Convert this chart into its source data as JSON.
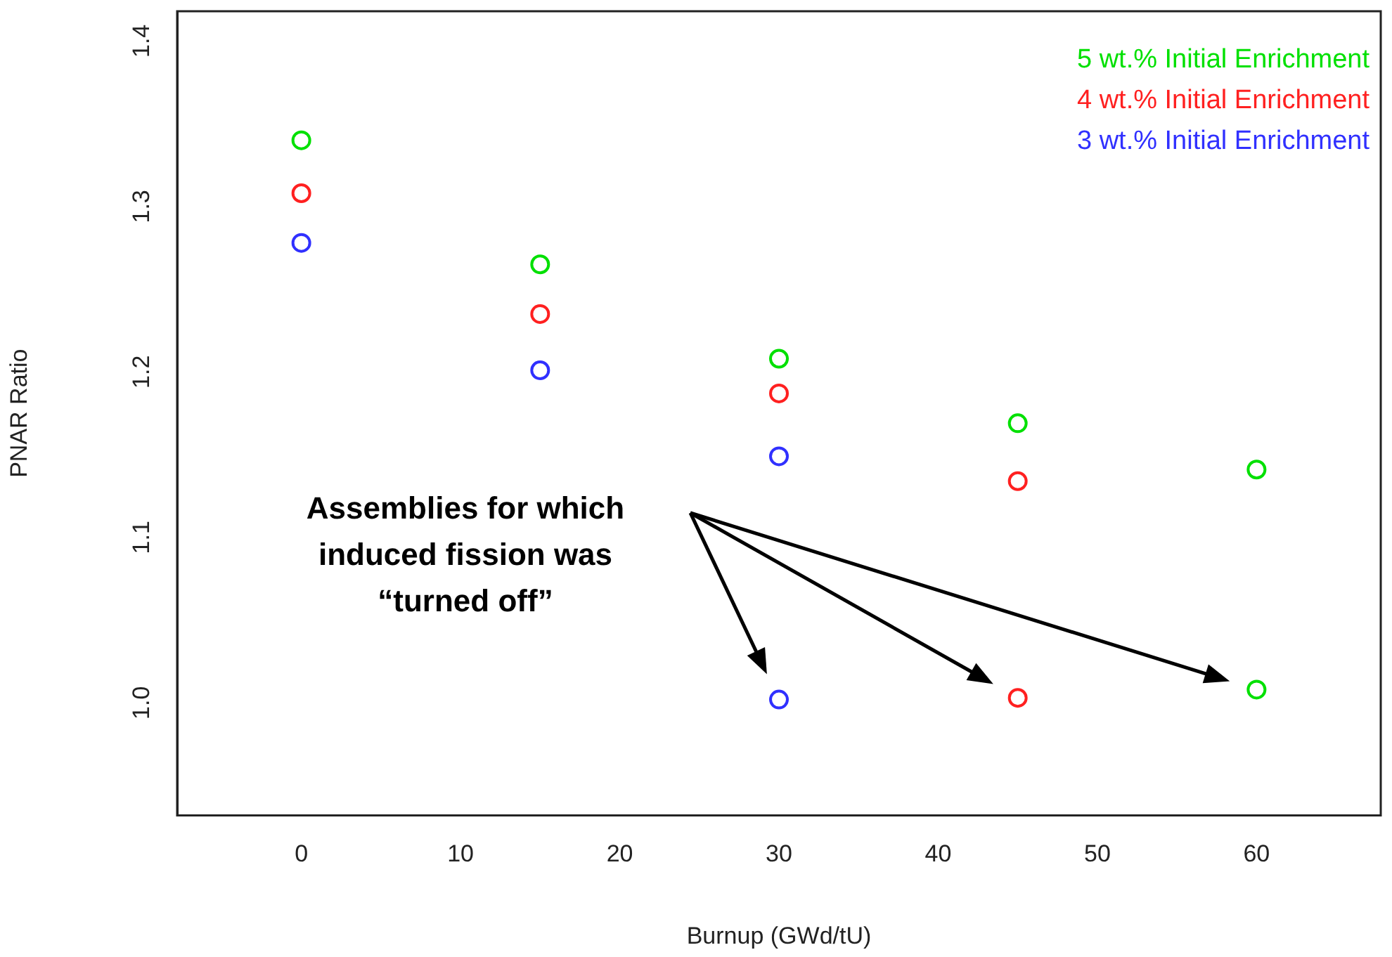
{
  "chart_data": {
    "type": "scatter",
    "xlabel": "Burnup (GWd/tU)",
    "ylabel": "PNAR Ratio",
    "xlim": [
      -7.8,
      67.8
    ],
    "xticks": [
      0,
      10,
      20,
      30,
      40,
      50,
      60
    ],
    "ylim": [
      0.932,
      1.418
    ],
    "yticks": [
      {
        "value": 1.0,
        "label": "1.0"
      },
      1.1,
      1.2,
      1.3,
      1.4
    ],
    "grid": false,
    "marker": "circle",
    "series": [
      {
        "name": "5 wt.% Initial Enrichment",
        "color": "#00e000",
        "x": [
          0,
          15,
          30,
          45,
          60,
          60
        ],
        "values": [
          1.34,
          1.265,
          1.208,
          1.169,
          1.141,
          1.008
        ]
      },
      {
        "name": "4 wt.% Initial Enrichment",
        "color": "#ff2020",
        "x": [
          0,
          15,
          30,
          45,
          45
        ],
        "values": [
          1.308,
          1.235,
          1.187,
          1.134,
          1.003
        ]
      },
      {
        "name": "3 wt.% Initial Enrichment",
        "color": "#3030ff",
        "x": [
          0,
          15,
          30,
          30
        ],
        "values": [
          1.278,
          1.201,
          1.149,
          1.002
        ]
      }
    ],
    "annotations": [
      "Assemblies for which induced fission was “turned off”"
    ]
  }
}
